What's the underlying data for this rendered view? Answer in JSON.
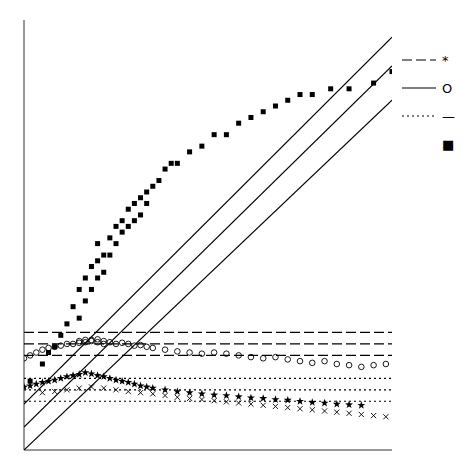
{
  "chart_data": {
    "type": "scatter",
    "xlim": [
      5,
      65
    ],
    "ylim": [
      2.0,
      9.5
    ],
    "tick_labels": false,
    "series": [
      {
        "type": "scatter",
        "marker": "square",
        "color": "#000000",
        "x": [
          6,
          8,
          9,
          10,
          11,
          12,
          13,
          14,
          14,
          15,
          15,
          16,
          16,
          17,
          17,
          17,
          18,
          18,
          19,
          19,
          20,
          20,
          21,
          21,
          22,
          22,
          23,
          23,
          24,
          24,
          25,
          25,
          26,
          27,
          28,
          29,
          30,
          32,
          34,
          36,
          38,
          40,
          42,
          44,
          46,
          48,
          50,
          52,
          55,
          58,
          62,
          65
        ],
        "values": [
          3.2,
          3.5,
          3.7,
          3.8,
          4.0,
          4.2,
          4.5,
          4.3,
          4.8,
          4.6,
          5.0,
          5.2,
          4.8,
          5.3,
          5.0,
          5.6,
          5.4,
          5.1,
          5.7,
          5.4,
          5.9,
          5.6,
          6.0,
          5.8,
          6.2,
          5.9,
          6.3,
          6.0,
          6.4,
          6.1,
          6.5,
          6.3,
          6.6,
          6.7,
          6.9,
          7.0,
          7.0,
          7.2,
          7.3,
          7.5,
          7.5,
          7.7,
          7.8,
          7.9,
          8.0,
          8.1,
          8.2,
          8.2,
          8.3,
          8.3,
          8.4,
          8.6
        ]
      },
      {
        "type": "line",
        "line_style": "solid",
        "color": "#000000",
        "x": [
          5,
          65
        ],
        "values": [
          2.8,
          9.2
        ]
      },
      {
        "type": "line",
        "line_style": "solid",
        "color": "#000000",
        "x": [
          5,
          65
        ],
        "values": [
          2.4,
          8.7
        ]
      },
      {
        "type": "line",
        "line_style": "solid",
        "color": "#000000",
        "x": [
          5,
          65
        ],
        "values": [
          2.0,
          8.1
        ]
      },
      {
        "type": "scatter",
        "marker": "circle-open",
        "color": "#000000",
        "x": [
          5,
          6,
          7,
          8,
          9,
          10,
          11,
          12,
          13,
          14,
          14,
          15,
          15,
          16,
          16,
          17,
          17,
          18,
          18,
          19,
          20,
          21,
          22,
          23,
          24,
          25,
          26,
          28,
          30,
          32,
          34,
          36,
          38,
          40,
          42,
          44,
          46,
          48,
          50,
          52,
          54,
          56,
          58,
          60,
          62,
          64
        ],
        "values": [
          3.6,
          3.65,
          3.7,
          3.75,
          3.78,
          3.8,
          3.82,
          3.85,
          3.85,
          3.87,
          3.9,
          3.88,
          3.92,
          3.9,
          3.92,
          3.93,
          3.88,
          3.9,
          3.85,
          3.88,
          3.85,
          3.87,
          3.85,
          3.82,
          3.83,
          3.8,
          3.78,
          3.75,
          3.72,
          3.7,
          3.68,
          3.7,
          3.68,
          3.65,
          3.62,
          3.6,
          3.62,
          3.58,
          3.55,
          3.52,
          3.55,
          3.5,
          3.48,
          3.45,
          3.48,
          3.5
        ]
      },
      {
        "type": "line",
        "line_style": "dashed",
        "color": "#000000",
        "x": [
          5,
          65
        ],
        "values": [
          4.05,
          4.05
        ]
      },
      {
        "type": "line",
        "line_style": "dashed",
        "color": "#000000",
        "x": [
          5,
          65
        ],
        "values": [
          3.85,
          3.85
        ]
      },
      {
        "type": "line",
        "line_style": "dashed",
        "color": "#000000",
        "x": [
          5,
          65
        ],
        "values": [
          3.65,
          3.65
        ]
      },
      {
        "type": "scatter",
        "marker": "star",
        "color": "#000000",
        "x": [
          5,
          6,
          7,
          8,
          9,
          10,
          11,
          12,
          13,
          14,
          15,
          16,
          17,
          18,
          19,
          20,
          21,
          22,
          23,
          24,
          25,
          26,
          28,
          30,
          32,
          34,
          36,
          38,
          40,
          42,
          44,
          46,
          48,
          50,
          52,
          54,
          56,
          58,
          60
        ],
        "values": [
          3.1,
          3.12,
          3.15,
          3.18,
          3.2,
          3.22,
          3.25,
          3.28,
          3.3,
          3.32,
          3.35,
          3.33,
          3.3,
          3.28,
          3.25,
          3.22,
          3.2,
          3.18,
          3.15,
          3.12,
          3.1,
          3.08,
          3.05,
          3.02,
          3.0,
          2.98,
          2.96,
          2.95,
          2.93,
          2.91,
          2.9,
          2.88,
          2.87,
          2.85,
          2.83,
          2.82,
          2.8,
          2.79,
          2.78
        ]
      },
      {
        "type": "scatter",
        "marker": "x",
        "color": "#000000",
        "x": [
          8,
          10,
          12,
          14,
          16,
          18,
          20,
          22,
          24,
          26,
          28,
          30,
          32,
          34,
          36,
          38,
          40,
          42,
          44,
          46,
          48,
          50,
          52,
          54,
          56,
          58,
          60,
          62,
          64
        ],
        "values": [
          3.0,
          3.02,
          3.05,
          3.08,
          3.1,
          3.08,
          3.05,
          3.02,
          3.0,
          2.98,
          2.95,
          2.92,
          2.9,
          2.88,
          2.86,
          2.84,
          2.82,
          2.8,
          2.78,
          2.76,
          2.74,
          2.72,
          2.7,
          2.68,
          2.66,
          2.64,
          2.62,
          2.6,
          2.58
        ]
      },
      {
        "type": "line",
        "line_style": "dotted",
        "color": "#000000",
        "x": [
          5,
          65
        ],
        "values": [
          3.25,
          3.25
        ]
      },
      {
        "type": "line",
        "line_style": "dotted",
        "color": "#000000",
        "x": [
          5,
          65
        ],
        "values": [
          3.05,
          3.05
        ]
      },
      {
        "type": "line",
        "line_style": "dotted",
        "color": "#000000",
        "x": [
          5,
          65
        ],
        "values": [
          2.85,
          2.85
        ]
      }
    ],
    "annotations": [
      {
        "text": "*",
        "line_style": "dashed"
      },
      {
        "text": "O",
        "line_style": "solid"
      },
      {
        "text": "—",
        "line_style": "dotted"
      },
      {
        "text": "■",
        "line_style": "none"
      }
    ]
  }
}
